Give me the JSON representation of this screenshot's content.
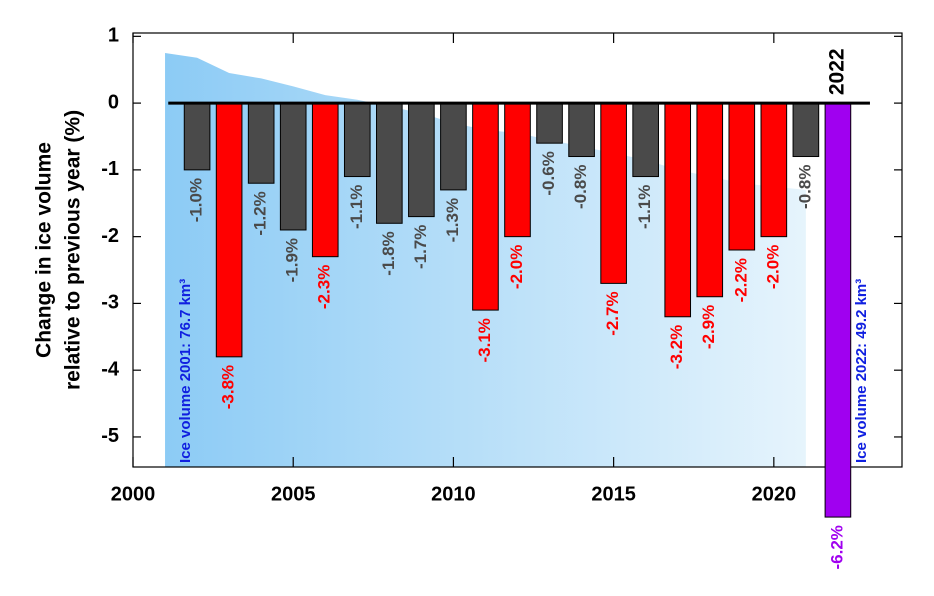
{
  "chart_data": {
    "type": "bar",
    "ylabel": [
      "Change in ice volume",
      "relative to previous year (%)"
    ],
    "x": [
      2002,
      2003,
      2004,
      2005,
      2006,
      2007,
      2008,
      2009,
      2010,
      2011,
      2012,
      2013,
      2014,
      2015,
      2016,
      2017,
      2018,
      2019,
      2020,
      2021,
      2022
    ],
    "values": [
      -1.0,
      -3.8,
      -1.2,
      -1.9,
      -2.3,
      -1.1,
      -1.8,
      -1.7,
      -1.3,
      -3.1,
      -2.0,
      -0.6,
      -0.8,
      -2.7,
      -1.1,
      -3.2,
      -2.9,
      -2.2,
      -2.0,
      -0.8,
      -6.2
    ],
    "value_labels": [
      "-1.0%",
      "-3.8%",
      "-1.2%",
      "-1.9%",
      "-2.3%",
      "-1.1%",
      "-1.8%",
      "-1.7%",
      "-1.3%",
      "-3.1%",
      "-2.0%",
      "-0.6%",
      "-0.8%",
      "-2.7%",
      "-1.1%",
      "-3.2%",
      "-2.9%",
      "-2.2%",
      "-2.0%",
      "-0.8%",
      "-6.2%"
    ],
    "colors": [
      "#4a4a4a",
      "#ff0000",
      "#4a4a4a",
      "#4a4a4a",
      "#ff0000",
      "#4a4a4a",
      "#4a4a4a",
      "#4a4a4a",
      "#4a4a4a",
      "#ff0000",
      "#ff0000",
      "#4a4a4a",
      "#4a4a4a",
      "#ff0000",
      "#4a4a4a",
      "#ff0000",
      "#ff0000",
      "#ff0000",
      "#ff0000",
      "#4a4a4a",
      "#a000f0"
    ],
    "highlight_label": "2022",
    "annotations": [
      "Ice volume 2001: 76.7 km³",
      "Ice volume 2022: 49.2 km³"
    ],
    "annotation_color": "#1020e0",
    "area": {
      "x": [
        2001,
        2002,
        2003,
        2004,
        2005,
        2006,
        2007,
        2008,
        2009,
        2010,
        2011,
        2012,
        2013,
        2014,
        2015,
        2016,
        2017,
        2018,
        2019,
        2020,
        2021
      ],
      "values": [
        0.75,
        0.68,
        0.45,
        0.37,
        0.25,
        0.12,
        0.05,
        -0.05,
        -0.15,
        -0.3,
        -0.4,
        -0.45,
        -0.55,
        -0.65,
        -0.75,
        -0.85,
        -1.0,
        -1.1,
        -1.2,
        -1.25,
        -1.3
      ],
      "colors": [
        "#8ccbf5",
        "#e6f4fc"
      ]
    },
    "xlim": [
      2000,
      2024
    ],
    "xticks": [
      2000,
      2005,
      2010,
      2015,
      2020
    ],
    "ylim": [
      -5.45,
      1.05
    ],
    "yticks": [
      -5,
      -4,
      -3,
      -2,
      -1,
      0,
      1
    ]
  }
}
